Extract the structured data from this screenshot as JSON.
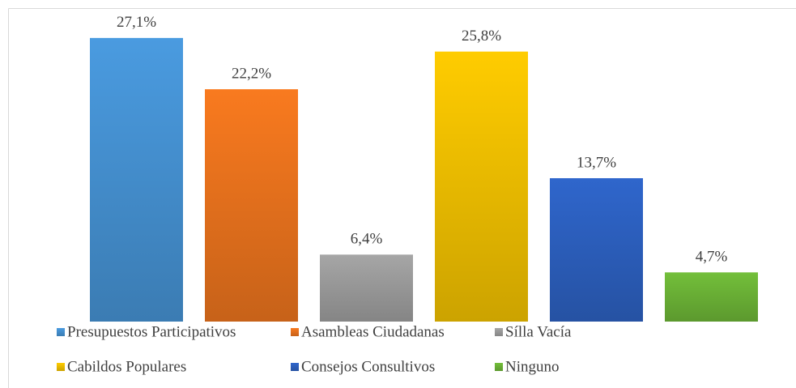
{
  "chart_data": {
    "type": "bar",
    "series": [
      {
        "name": "Presupuestos Participativos",
        "color": "#4a9be0",
        "values": [
          27.1
        ],
        "value_labels": [
          "27,1%"
        ]
      },
      {
        "name": "Asambleas Ciudadanas",
        "color": "#f97a1f",
        "values": [
          22.2
        ],
        "value_labels": [
          "22,2%"
        ]
      },
      {
        "name": "Sílla Vacía",
        "color": "#a6a6a6",
        "values": [
          6.4
        ],
        "value_labels": [
          "6,4%"
        ]
      },
      {
        "name": "Cabildos Populares",
        "color": "#ffcc00",
        "values": [
          25.8
        ],
        "value_labels": [
          "25,8%"
        ]
      },
      {
        "name": "Consejos Consultivos",
        "color": "#2f66cc",
        "values": [
          13.7
        ],
        "value_labels": [
          "13,7%"
        ]
      },
      {
        "name": "Ninguno",
        "color": "#73bf3a",
        "values": [
          4.7
        ],
        "value_labels": [
          "4,7%"
        ]
      }
    ],
    "ylim": [
      0,
      30
    ]
  }
}
